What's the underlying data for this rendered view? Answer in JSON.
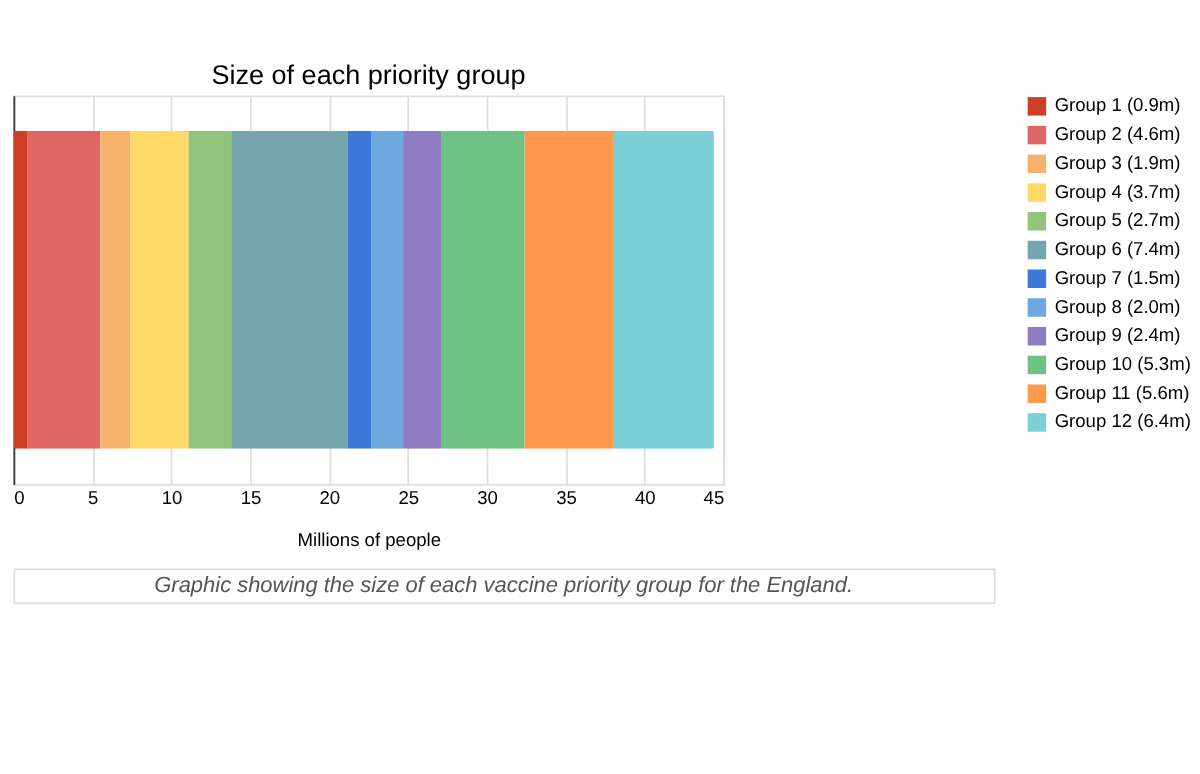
{
  "chart_data": {
    "type": "bar",
    "title": "Size of each priority group",
    "xlabel": "Millions of people",
    "orientation": "horizontal",
    "stacked": true,
    "categories": [
      null
    ],
    "series": [
      {
        "name": "Group 1 (0.9m)",
        "color": "#cc4125",
        "values": [
          0.9
        ]
      },
      {
        "name": "Group 2 (4.6m)",
        "color": "#e06666",
        "values": [
          4.6
        ]
      },
      {
        "name": "Group 3 (1.9m)",
        "color": "#f6b26b",
        "values": [
          1.9
        ]
      },
      {
        "name": "Group 4 (3.7m)",
        "color": "#ffd966",
        "values": [
          3.7
        ]
      },
      {
        "name": "Group 5 (2.7m)",
        "color": "#93c47d",
        "values": [
          2.7
        ]
      },
      {
        "name": "Group 6 (7.4m)",
        "color": "#76a5af",
        "values": [
          7.4
        ]
      },
      {
        "name": "Group 7 (1.5m)",
        "color": "#3c78d8",
        "values": [
          1.5
        ]
      },
      {
        "name": "Group 8 (2.0m)",
        "color": "#6fa8dc",
        "values": [
          2.0
        ]
      },
      {
        "name": "Group 9 (2.4m)",
        "color": "#8e7cc3",
        "values": [
          2.4
        ]
      },
      {
        "name": "Group 10 (5.3m)",
        "color": "#6fc286",
        "values": [
          5.3
        ]
      },
      {
        "name": "Group 11 (5.6m)",
        "color": "#ff994d",
        "values": [
          5.6
        ]
      },
      {
        "name": "Group 12 (6.4m)",
        "color": "#7dd0d6",
        "values": [
          6.4
        ]
      }
    ],
    "xlim": [
      0,
      45
    ],
    "xticks": [
      0,
      5,
      10,
      15,
      20,
      25,
      30,
      35,
      40,
      45
    ],
    "grid": "x",
    "legend": "right",
    "annotations": [
      "Graphic showing the size of each vaccine priority group for the England."
    ]
  }
}
